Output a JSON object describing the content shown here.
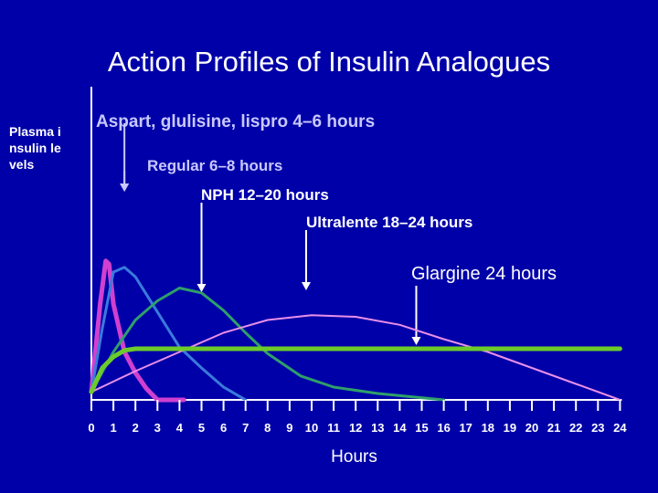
{
  "chart_data": {
    "type": "line",
    "title": "Action Profiles of Insulin Analogues",
    "ylabel": "Plasma insulin levels",
    "xlabel": "Hours",
    "xlim": [
      0,
      24
    ],
    "ylim": [
      0,
      1
    ],
    "xticks": [
      "0",
      "1",
      "2",
      "3",
      "4",
      "5",
      "6",
      "7",
      "8",
      "9",
      "10",
      "11",
      "12",
      "13",
      "14",
      "15",
      "16",
      "17",
      "18",
      "19",
      "20",
      "21",
      "22",
      "23",
      "24"
    ],
    "annotations": [
      {
        "text": "Aspart, glulisine, lispro 4–6 hours",
        "color": "#c8c8ff",
        "arrow_x": 1.5
      },
      {
        "text": "Regular 6–8 hours",
        "color": "#c8c8ff",
        "arrow_x": 1.5
      },
      {
        "text": "NPH 12–20 hours",
        "color": "#ffffff",
        "arrow_x": 5.0
      },
      {
        "text": "Ultralente 18–24 hours",
        "color": "#ffffff",
        "arrow_x": 9.75
      },
      {
        "text": "Glargine 24 hours",
        "color": "#ffffff",
        "arrow_x": 14.75
      }
    ],
    "series": [
      {
        "color": "#d040d0",
        "width": 5,
        "points": [
          [
            0,
            0.05
          ],
          [
            0.4,
            0.6
          ],
          [
            0.65,
            0.87
          ],
          [
            0.8,
            0.85
          ],
          [
            1.0,
            0.6
          ],
          [
            1.5,
            0.3
          ],
          [
            2.0,
            0.17
          ],
          [
            2.5,
            0.07
          ],
          [
            3.0,
            0.0
          ],
          [
            4.2,
            0.0
          ]
        ]
      },
      {
        "color": "#3a7adc",
        "width": 3,
        "points": [
          [
            0,
            0.05
          ],
          [
            0.5,
            0.45
          ],
          [
            1.0,
            0.8
          ],
          [
            1.5,
            0.83
          ],
          [
            2.0,
            0.77
          ],
          [
            3.0,
            0.55
          ],
          [
            4.0,
            0.33
          ],
          [
            5.0,
            0.2
          ],
          [
            6.0,
            0.08
          ],
          [
            7.0,
            0.0
          ]
        ]
      },
      {
        "color": "#2f9f6a",
        "width": 3,
        "points": [
          [
            0,
            0.05
          ],
          [
            1.0,
            0.3
          ],
          [
            2.0,
            0.5
          ],
          [
            3.0,
            0.62
          ],
          [
            4.0,
            0.7
          ],
          [
            5.0,
            0.67
          ],
          [
            6.0,
            0.56
          ],
          [
            7.0,
            0.42
          ],
          [
            8.0,
            0.29
          ],
          [
            9.5,
            0.15
          ],
          [
            11.0,
            0.08
          ],
          [
            13.0,
            0.04
          ],
          [
            16.0,
            0.0
          ]
        ]
      },
      {
        "color": "#e890e8",
        "width": 2,
        "points": [
          [
            0,
            0.05
          ],
          [
            2.0,
            0.18
          ],
          [
            4.0,
            0.3
          ],
          [
            6.0,
            0.42
          ],
          [
            8.0,
            0.5
          ],
          [
            10.0,
            0.53
          ],
          [
            12.0,
            0.52
          ],
          [
            14.0,
            0.47
          ],
          [
            16.0,
            0.38
          ],
          [
            18.0,
            0.3
          ],
          [
            20.0,
            0.2
          ],
          [
            22.0,
            0.1
          ],
          [
            24.0,
            0.0
          ]
        ]
      },
      {
        "color": "#6ccb2a",
        "width": 5,
        "points": [
          [
            0,
            0.05
          ],
          [
            0.5,
            0.2
          ],
          [
            1.0,
            0.27
          ],
          [
            1.5,
            0.31
          ],
          [
            2.0,
            0.32
          ],
          [
            24.0,
            0.32
          ]
        ]
      }
    ]
  }
}
